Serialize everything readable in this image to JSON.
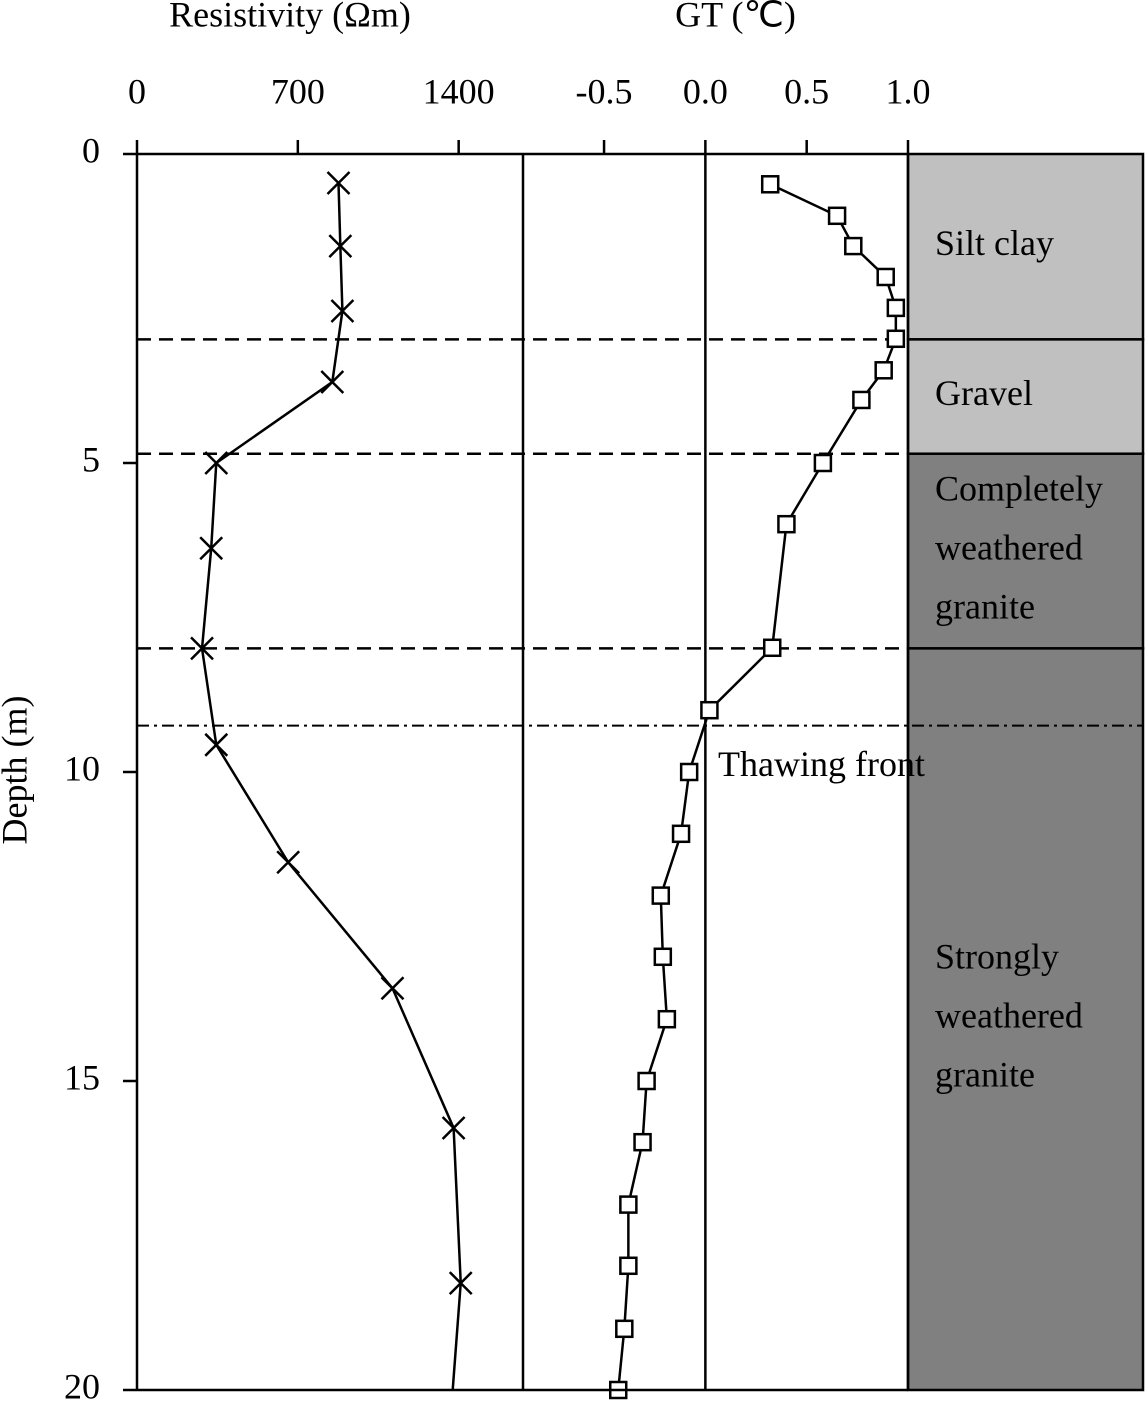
{
  "chart_data": {
    "type": "depth-profile",
    "ylabel": "Depth (m)",
    "ylim": [
      0,
      20
    ],
    "yticks": [
      0,
      5,
      10,
      15,
      20
    ],
    "panels": [
      {
        "type": "line",
        "title": "Resistivity (Ωm)",
        "marker": "x",
        "color": "#000000",
        "xlim": [
          0,
          1680
        ],
        "xticks": [
          0,
          700,
          1400
        ],
        "depths": [
          0.47,
          1.49,
          2.54,
          3.69,
          5.0,
          6.38,
          8.0,
          9.56,
          11.46,
          13.5,
          15.76,
          18.27,
          20.0
        ],
        "values": [
          877,
          885,
          894,
          850,
          345,
          323,
          283,
          345,
          658,
          1112,
          1378,
          1409,
          1374
        ]
      },
      {
        "type": "line",
        "title": "GT (℃)",
        "marker": "square",
        "color": "#000000",
        "xlim": [
          -0.9,
          1.0
        ],
        "xticks": [
          -0.5,
          {
            "value": 0,
            "label": "0.0"
          },
          0.5,
          {
            "value": 1,
            "label": "1.0"
          }
        ],
        "depths": [
          0.49,
          1.0,
          1.49,
          1.99,
          2.49,
          2.99,
          3.5,
          3.98,
          5.0,
          5.99,
          7.99,
          9.0,
          10.0,
          11.0,
          12.0,
          12.99,
          14.0,
          15.0,
          15.99,
          17.0,
          17.99,
          19.01,
          20.0
        ],
        "values": [
          0.32,
          0.65,
          0.73,
          0.89,
          0.94,
          0.94,
          0.88,
          0.77,
          0.58,
          0.4,
          0.33,
          0.02,
          -0.08,
          -0.12,
          -0.22,
          -0.21,
          -0.19,
          -0.29,
          -0.31,
          -0.38,
          -0.38,
          -0.4,
          -0.43
        ]
      }
    ],
    "strata": [
      {
        "lines": [
          "Silt clay"
        ],
        "top": 0,
        "bottom": 3,
        "color": "#c0c0c0"
      },
      {
        "lines": [
          "Gravel"
        ],
        "top": 3,
        "bottom": 4.85,
        "color": "#c0c0c0"
      },
      {
        "lines": [
          "Completely",
          "weathered",
          "granite"
        ],
        "top": 4.85,
        "bottom": 8,
        "color": "#808080"
      },
      {
        "lines": [
          "Strongly",
          "weathered",
          "granite"
        ],
        "top": 8,
        "bottom": 20,
        "color": "#808080"
      }
    ],
    "thawing_front": {
      "label": "Thawing front",
      "depth": 9.25
    }
  }
}
